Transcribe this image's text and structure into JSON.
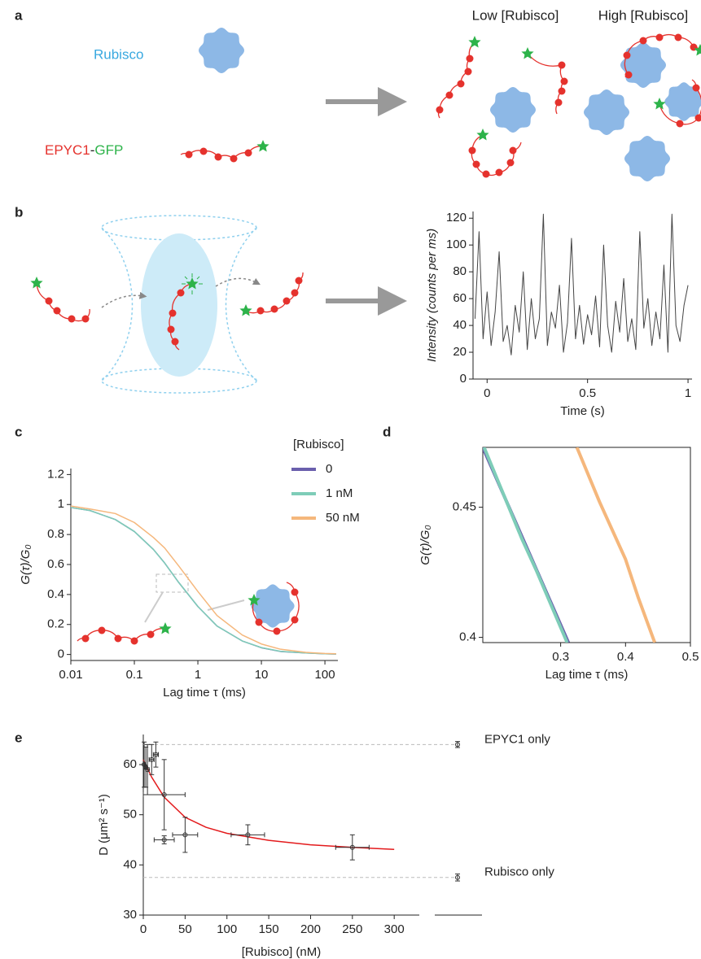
{
  "panel_labels": [
    "a",
    "b",
    "c",
    "d",
    "e"
  ],
  "diagram_a": {
    "rubisco_label": "Rubisco",
    "epyc1_label": "EPYC1",
    "dash": "-",
    "gfp_label": "GFP",
    "low_label": "Low [Rubisco]",
    "high_label": "High [Rubisco]"
  },
  "chart_data": [
    {
      "type": "line",
      "xlabel": "Time (s)",
      "ylabel": "Intensity (counts per ms)",
      "xlim": [
        -0.07,
        1.02
      ],
      "xticks": [
        0,
        0.5,
        1
      ],
      "ylim": [
        0,
        125
      ],
      "yticks": [
        0,
        20,
        40,
        60,
        80,
        100,
        120
      ],
      "x": [
        -0.06,
        -0.04,
        -0.02,
        0,
        0.02,
        0.04,
        0.06,
        0.08,
        0.1,
        0.12,
        0.14,
        0.16,
        0.18,
        0.2,
        0.22,
        0.24,
        0.26,
        0.28,
        0.3,
        0.32,
        0.34,
        0.36,
        0.38,
        0.4,
        0.42,
        0.44,
        0.46,
        0.48,
        0.5,
        0.52,
        0.54,
        0.56,
        0.58,
        0.6,
        0.62,
        0.64,
        0.66,
        0.68,
        0.7,
        0.72,
        0.74,
        0.76,
        0.78,
        0.8,
        0.82,
        0.84,
        0.86,
        0.88,
        0.9,
        0.92,
        0.94,
        0.96,
        0.98,
        1
      ],
      "series": [
        {
          "color": "#444444",
          "values": [
            45,
            110,
            30,
            65,
            25,
            50,
            95,
            28,
            40,
            18,
            55,
            35,
            80,
            22,
            60,
            30,
            45,
            123,
            25,
            50,
            38,
            70,
            20,
            42,
            105,
            30,
            55,
            26,
            48,
            33,
            62,
            24,
            100,
            40,
            20,
            58,
            35,
            75,
            28,
            45,
            22,
            110,
            38,
            60,
            25,
            50,
            30,
            85,
            20,
            123,
            40,
            28,
            55,
            70
          ]
        }
      ]
    },
    {
      "type": "line",
      "xscale": "log",
      "xlabel": "Lag time τ (ms)",
      "ylabel": "G(τ)/G₀",
      "legend_title": "[Rubisco]",
      "legend": "upper right",
      "xlim": [
        0.01,
        160
      ],
      "xticks": [
        0.01,
        0.1,
        1,
        10,
        100
      ],
      "ylim": [
        -0.04,
        1.24
      ],
      "yticks": [
        0,
        0.2,
        0.4,
        0.6,
        0.8,
        1,
        1.2
      ],
      "x": [
        0.01,
        0.02,
        0.05,
        0.1,
        0.2,
        0.3,
        0.5,
        1,
        2,
        5,
        10,
        20,
        50,
        100,
        150
      ],
      "series": [
        {
          "name": "0",
          "color": "#6a5fad",
          "values": [
            0.98,
            0.96,
            0.9,
            0.82,
            0.7,
            0.61,
            0.48,
            0.32,
            0.19,
            0.09,
            0.045,
            0.02,
            0.01,
            0.005,
            0.003
          ]
        },
        {
          "name": "1 nM",
          "color": "#7ecdb8",
          "values": [
            0.98,
            0.96,
            0.9,
            0.82,
            0.7,
            0.61,
            0.48,
            0.32,
            0.19,
            0.09,
            0.046,
            0.021,
            0.01,
            0.005,
            0.003
          ]
        },
        {
          "name": "50 nM",
          "color": "#f5b77c",
          "values": [
            0.99,
            0.97,
            0.94,
            0.88,
            0.78,
            0.71,
            0.59,
            0.42,
            0.26,
            0.13,
            0.07,
            0.035,
            0.014,
            0.007,
            0.005
          ]
        }
      ]
    },
    {
      "type": "line",
      "xlabel": "Lag time τ (ms)",
      "ylabel": "G(τ)/G₀",
      "xlim": [
        0.18,
        0.5
      ],
      "xticks": [
        0.3,
        0.4,
        0.5
      ],
      "ylim": [
        0.398,
        0.473
      ],
      "yticks": [
        0.4,
        0.45
      ],
      "series": [
        {
          "color": "#6a5fad",
          "x": [
            0.18,
            0.312
          ],
          "values": [
            0.473,
            0.398
          ]
        },
        {
          "color": "#7ecdb8",
          "x": [
            0.182,
            0.24,
            0.262,
            0.31
          ],
          "values": [
            0.473,
            0.438,
            0.426,
            0.398
          ]
        },
        {
          "color": "#f5b77c",
          "x": [
            0.325,
            0.36,
            0.4,
            0.42,
            0.445
          ],
          "values": [
            0.473,
            0.452,
            0.43,
            0.415,
            0.398
          ]
        }
      ]
    },
    {
      "type": "scatter",
      "xlabel": "[Rubisco] (nM)",
      "ylabel": "D (μm² s⁻¹)",
      "xlim": [
        0,
        330
      ],
      "xticks": [
        0,
        50,
        100,
        150,
        200,
        250,
        300
      ],
      "ylim": [
        30,
        66
      ],
      "yticks": [
        30,
        40,
        50,
        60
      ],
      "points": {
        "color": "#333333",
        "x": [
          1,
          3,
          5,
          10,
          15,
          25,
          25,
          50,
          125,
          250
        ],
        "values": [
          60,
          59.5,
          59,
          61,
          62,
          54,
          45,
          46,
          46,
          43.5
        ],
        "xerr": [
          1,
          1,
          2,
          3,
          3,
          25,
          12,
          15,
          20,
          20
        ],
        "yerr": [
          4.5,
          4,
          5,
          3,
          2.5,
          7,
          0.8,
          3.5,
          2,
          2.5
        ]
      },
      "fit": {
        "color": "#e31a1c",
        "x": [
          0,
          10,
          25,
          50,
          75,
          100,
          150,
          200,
          250,
          300
        ],
        "values": [
          61,
          57.5,
          53.5,
          49.5,
          47.5,
          46.3,
          44.9,
          44,
          43.5,
          43.1
        ]
      },
      "references": [
        {
          "label": "EPYC1 only",
          "value": 64,
          "error": 0.6
        },
        {
          "label": "Rubisco only",
          "value": 37.5,
          "error": 0.7
        }
      ]
    }
  ]
}
